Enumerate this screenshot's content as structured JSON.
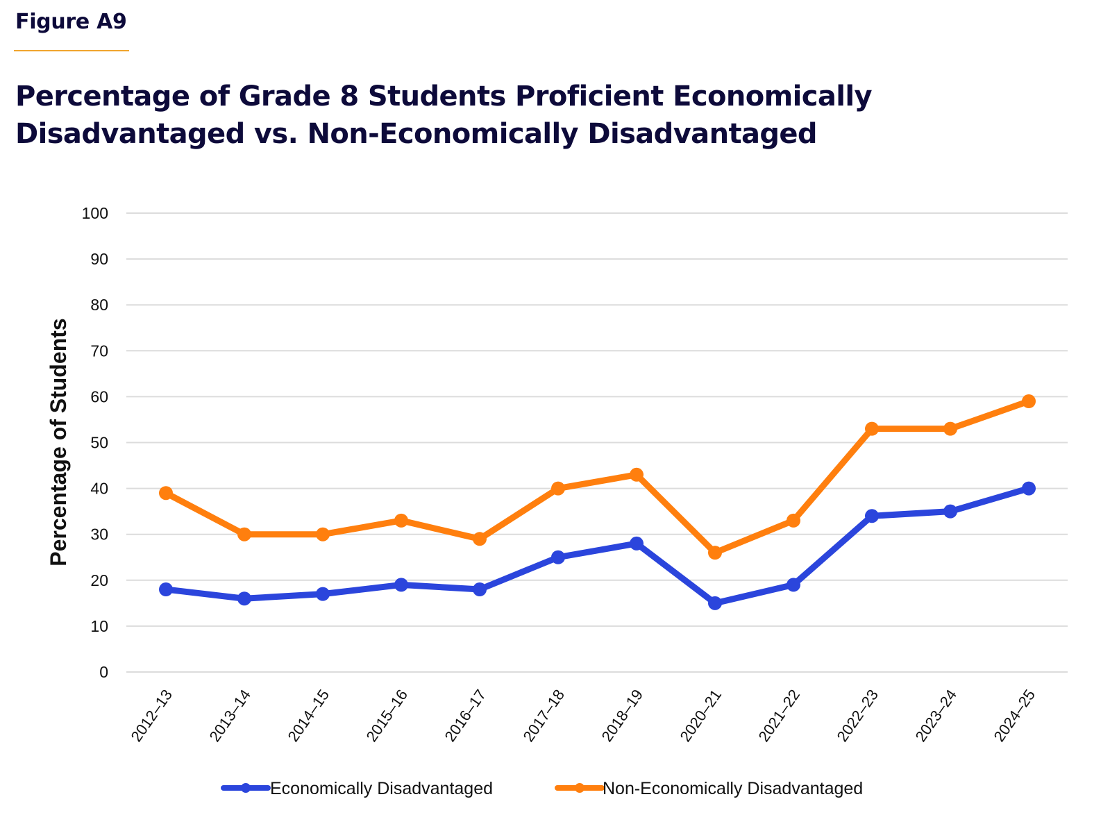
{
  "figure_label": "Figure A9",
  "accent_color": "#f0a52e",
  "title_lines": [
    "Percentage of Grade 8 Students Proficient Economically",
    "Disadvantaged vs. Non-Economically Disadvantaged"
  ],
  "chart_data": {
    "type": "line",
    "title": "Percentage of Grade 8 Students Proficient Economically Disadvantaged vs. Non-Economically Disadvantaged",
    "xlabel": "",
    "ylabel": "Percentage of Students",
    "ylim": [
      0,
      100
    ],
    "yticks": [
      0,
      10,
      20,
      30,
      40,
      50,
      60,
      70,
      80,
      90,
      100
    ],
    "grid": true,
    "legend_position": "bottom",
    "categories": [
      "2012–13",
      "2013–14",
      "2014–15",
      "2015–16",
      "2016–17",
      "2017–18",
      "2018–19",
      "2020–21",
      "2021–22",
      "2022–23",
      "2023–24",
      "2024–25"
    ],
    "series": [
      {
        "name": "Economically Disadvantaged",
        "color": "#2b45dc",
        "values": [
          18,
          16,
          17,
          19,
          18,
          25,
          28,
          15,
          19,
          34,
          35,
          40
        ]
      },
      {
        "name": "Non-Economically Disadvantaged",
        "color": "#ff7f0e",
        "values": [
          39,
          30,
          30,
          33,
          29,
          40,
          43,
          26,
          33,
          53,
          53,
          59
        ]
      }
    ]
  }
}
